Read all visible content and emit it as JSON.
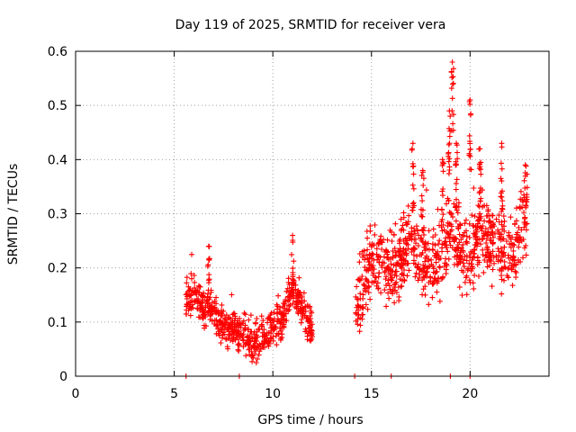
{
  "chart_data": {
    "type": "scatter",
    "title": "Day 119 of 2025, SRMTID for receiver vera",
    "xlabel": "GPS time / hours",
    "ylabel": "SRMTID / TECUs",
    "xlim": [
      0,
      24
    ],
    "ylim": [
      0,
      0.6
    ],
    "x_ticks": [
      "0",
      "5",
      "10",
      "15",
      "20"
    ],
    "y_ticks": [
      "0",
      "0.1",
      "0.2",
      "0.3",
      "0.4",
      "0.5",
      "0.6"
    ],
    "grid": true,
    "marker": "+",
    "color": "#ff0000",
    "segments": [
      {
        "x0": 5.6,
        "x1": 12.0,
        "seed": 11,
        "trend": [
          [
            5.6,
            0.14
          ],
          [
            6.0,
            0.15
          ],
          [
            6.5,
            0.12
          ],
          [
            6.8,
            0.13
          ],
          [
            7.2,
            0.1
          ],
          [
            7.8,
            0.09
          ],
          [
            8.5,
            0.08
          ],
          [
            9.0,
            0.06
          ],
          [
            9.5,
            0.07
          ],
          [
            10.0,
            0.09
          ],
          [
            10.5,
            0.1
          ],
          [
            11.0,
            0.17
          ],
          [
            11.3,
            0.14
          ],
          [
            11.7,
            0.1
          ],
          [
            12.0,
            0.09
          ]
        ],
        "spread": 0.045
      },
      {
        "x0": 14.2,
        "x1": 22.9,
        "seed": 23,
        "trend": [
          [
            14.2,
            0.13
          ],
          [
            14.6,
            0.17
          ],
          [
            15.0,
            0.21
          ],
          [
            15.5,
            0.22
          ],
          [
            16.0,
            0.19
          ],
          [
            16.5,
            0.22
          ],
          [
            17.0,
            0.25
          ],
          [
            17.5,
            0.22
          ],
          [
            18.0,
            0.2
          ],
          [
            18.5,
            0.22
          ],
          [
            19.0,
            0.27
          ],
          [
            19.5,
            0.24
          ],
          [
            20.0,
            0.22
          ],
          [
            20.5,
            0.28
          ],
          [
            21.0,
            0.25
          ],
          [
            21.5,
            0.24
          ],
          [
            22.0,
            0.22
          ],
          [
            22.5,
            0.25
          ],
          [
            22.9,
            0.3
          ]
        ],
        "spread": 0.09
      }
    ],
    "spikes": [
      {
        "x": 6.75,
        "y": 0.24
      },
      {
        "x": 11.0,
        "y": 0.26
      },
      {
        "x": 16.5,
        "y": 0.29
      },
      {
        "x": 17.1,
        "y": 0.43
      },
      {
        "x": 17.6,
        "y": 0.38
      },
      {
        "x": 18.6,
        "y": 0.4
      },
      {
        "x": 18.95,
        "y": 0.49
      },
      {
        "x": 19.1,
        "y": 0.58
      },
      {
        "x": 19.3,
        "y": 0.43
      },
      {
        "x": 20.0,
        "y": 0.51
      },
      {
        "x": 20.5,
        "y": 0.42
      },
      {
        "x": 21.6,
        "y": 0.43
      },
      {
        "x": 22.8,
        "y": 0.39
      }
    ],
    "zero_points": [
      5.6,
      8.3,
      14.15,
      16.0,
      19.0,
      20.0
    ]
  }
}
